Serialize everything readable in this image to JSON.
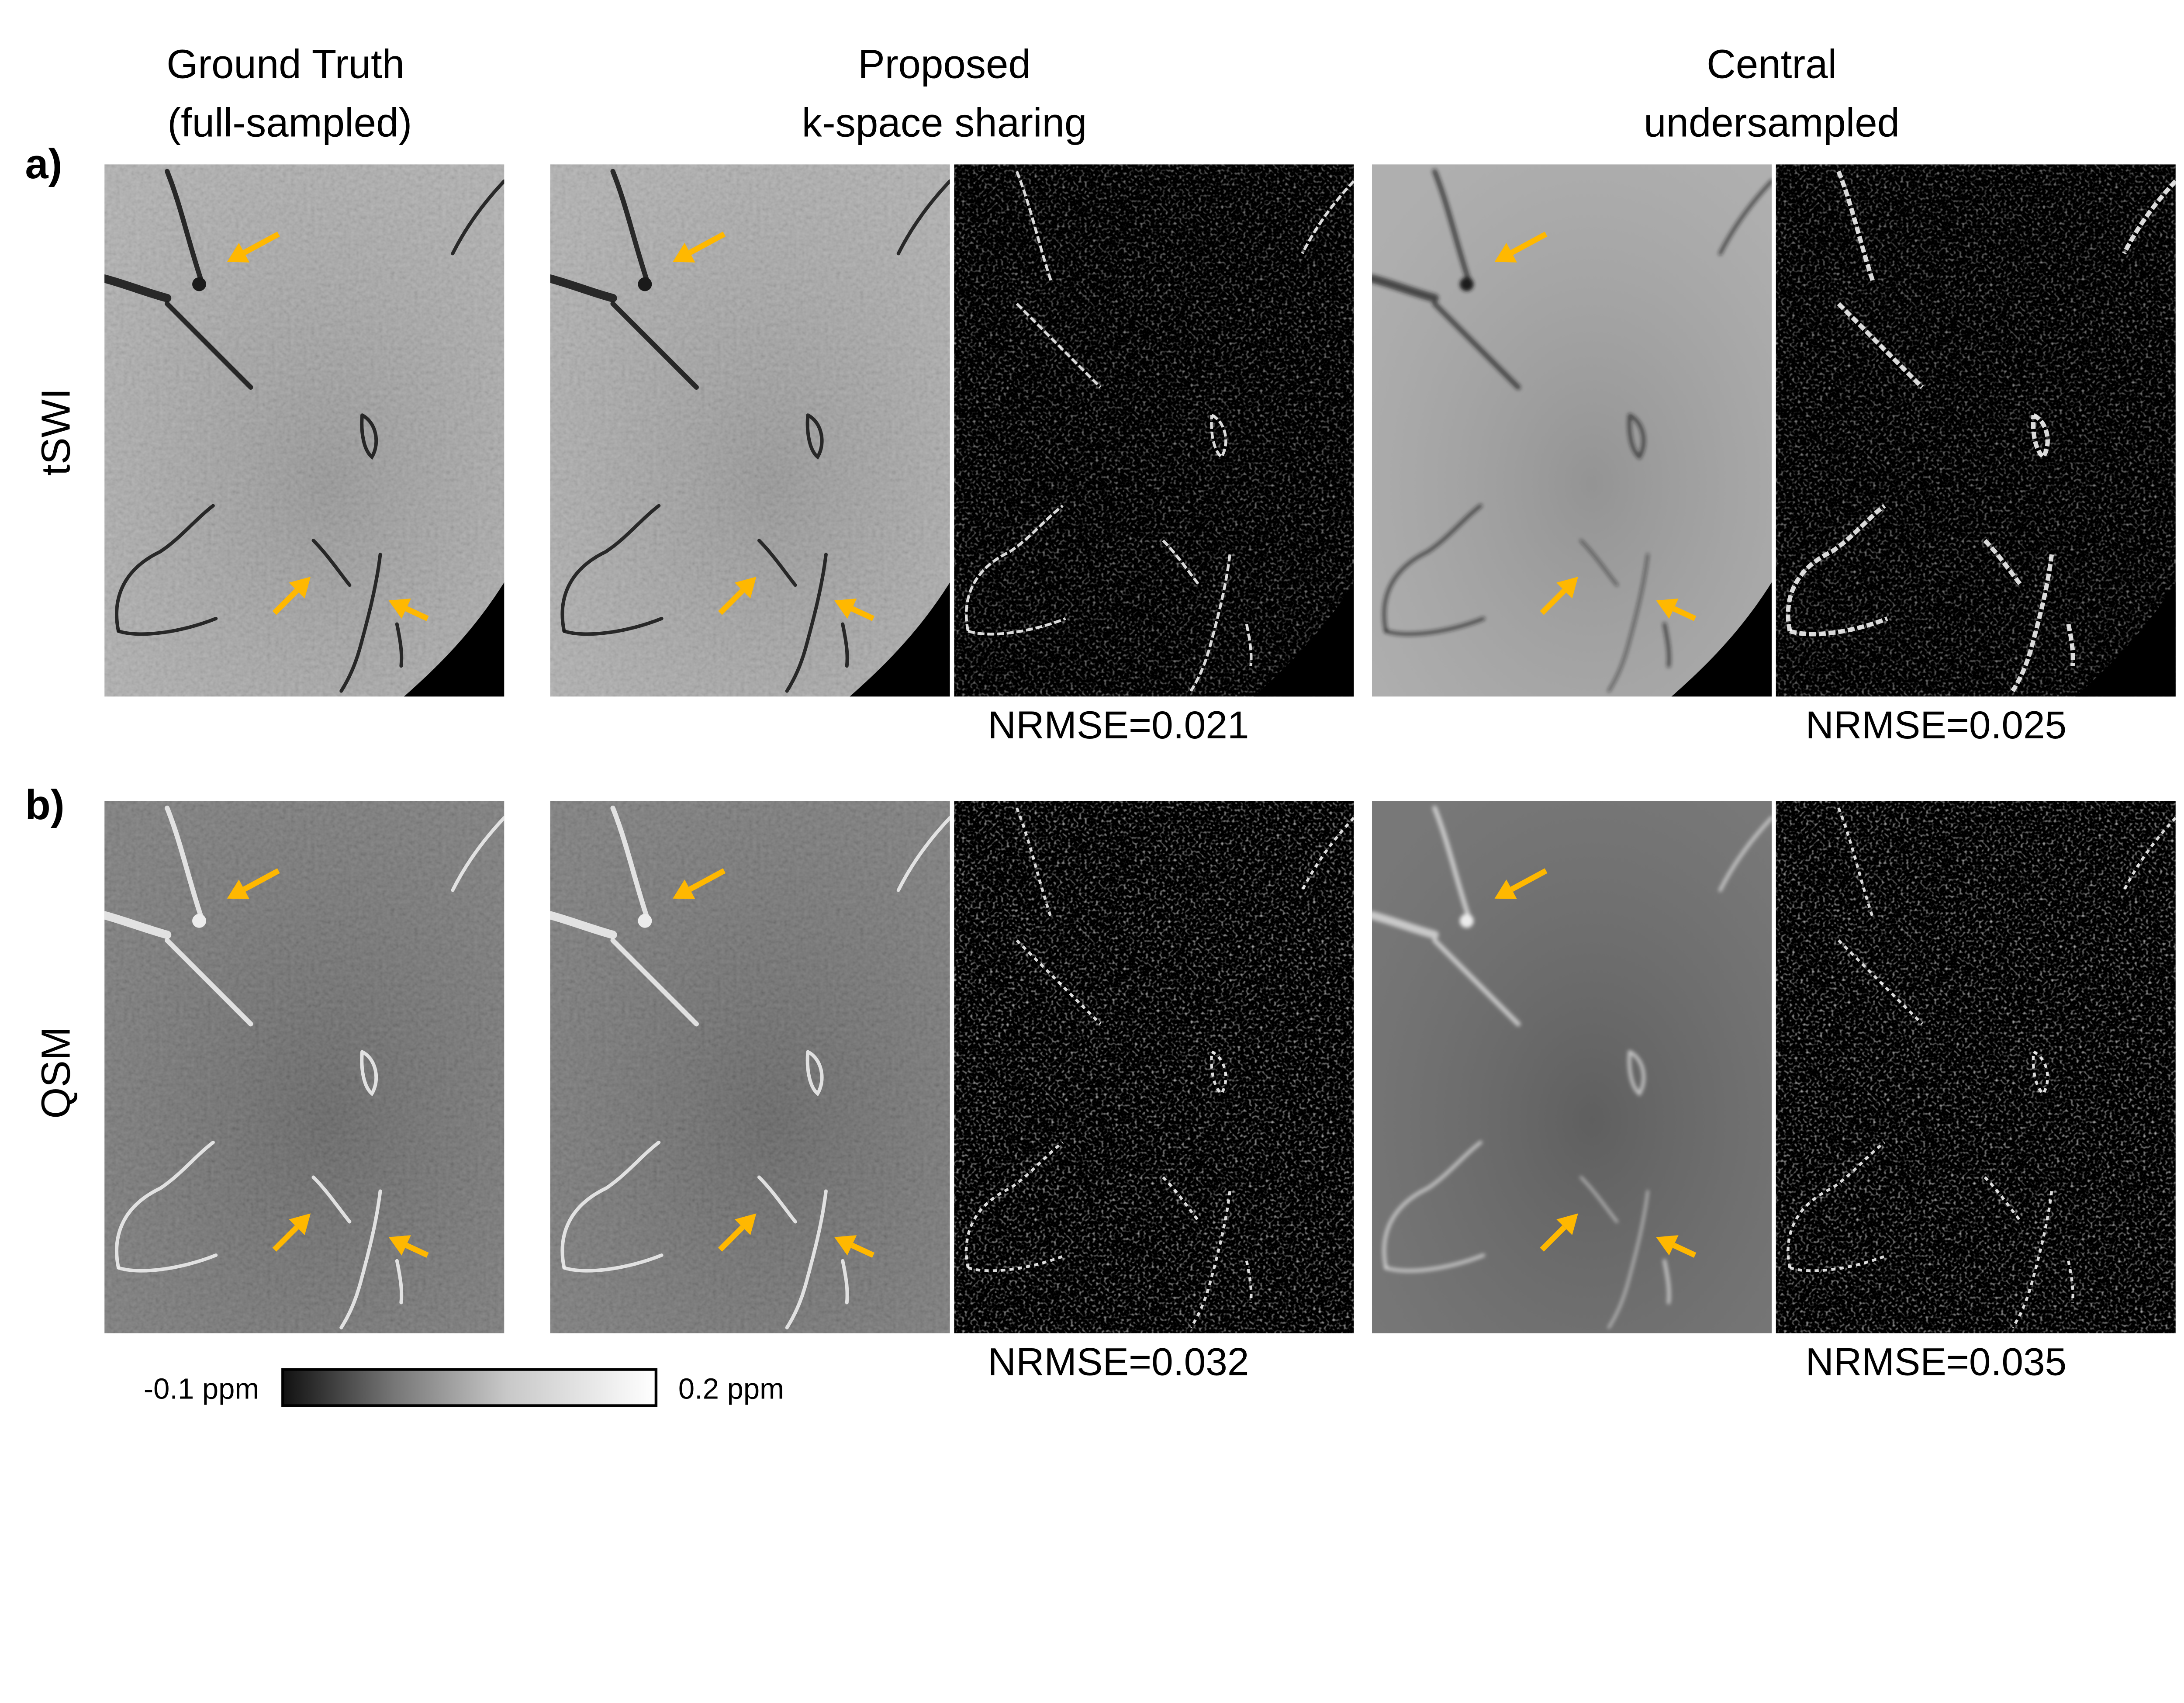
{
  "columns": [
    {
      "line1": "Ground Truth",
      "line2": "(full-sampled)"
    },
    {
      "line1": "Proposed",
      "line2": "k-space sharing"
    },
    {
      "line1": "Central",
      "line2": "undersampled"
    }
  ],
  "rows": [
    {
      "panel_label": "a)",
      "modality": "tSWI",
      "nrmse": [
        "NRMSE=0.021",
        "NRMSE=0.025"
      ]
    },
    {
      "panel_label": "b)",
      "modality": "QSM",
      "nrmse": [
        "NRMSE=0.032",
        "NRMSE=0.035"
      ]
    }
  ],
  "colorbar": {
    "min_label": "-0.1 ppm",
    "max_label": "0.2 ppm",
    "colormap": "grayscale"
  },
  "colors": {
    "arrow": "#FFB800",
    "tswi_background": "#a8a8a8",
    "qsm_background": "#6c6c6c",
    "error_map_background": "#000000"
  }
}
